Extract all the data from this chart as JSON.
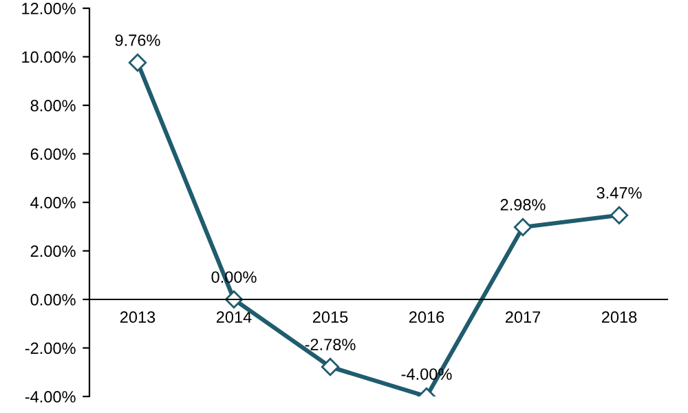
{
  "chart_data": {
    "type": "line",
    "categories": [
      "2013",
      "2014",
      "2015",
      "2016",
      "2017",
      "2018"
    ],
    "series": [
      {
        "color": "#1f5c6e",
        "values": [
          9.76,
          0.0,
          -2.78,
          -4.0,
          2.98,
          3.47
        ],
        "value_labels": [
          "9.76%",
          "0.00%",
          "-2.78%",
          "-4.00%",
          "2.98%",
          "3.47%"
        ]
      }
    ],
    "ylim": [
      -4,
      12
    ],
    "yticks": [
      {
        "value": -4,
        "label": "-4.00%"
      },
      {
        "value": -2,
        "label": "-2.00%"
      },
      {
        "value": 0,
        "label": "0.00%"
      },
      {
        "value": 2,
        "label": "2.00%"
      },
      {
        "value": 4,
        "label": "4.00%"
      },
      {
        "value": 6,
        "label": "6.00%"
      },
      {
        "value": 8,
        "label": "8.00%"
      },
      {
        "value": 10,
        "label": "10.00%"
      },
      {
        "value": 12,
        "label": "12.00%"
      }
    ],
    "grid": false,
    "legend": false,
    "marker": "diamond",
    "line_style": "solid"
  }
}
